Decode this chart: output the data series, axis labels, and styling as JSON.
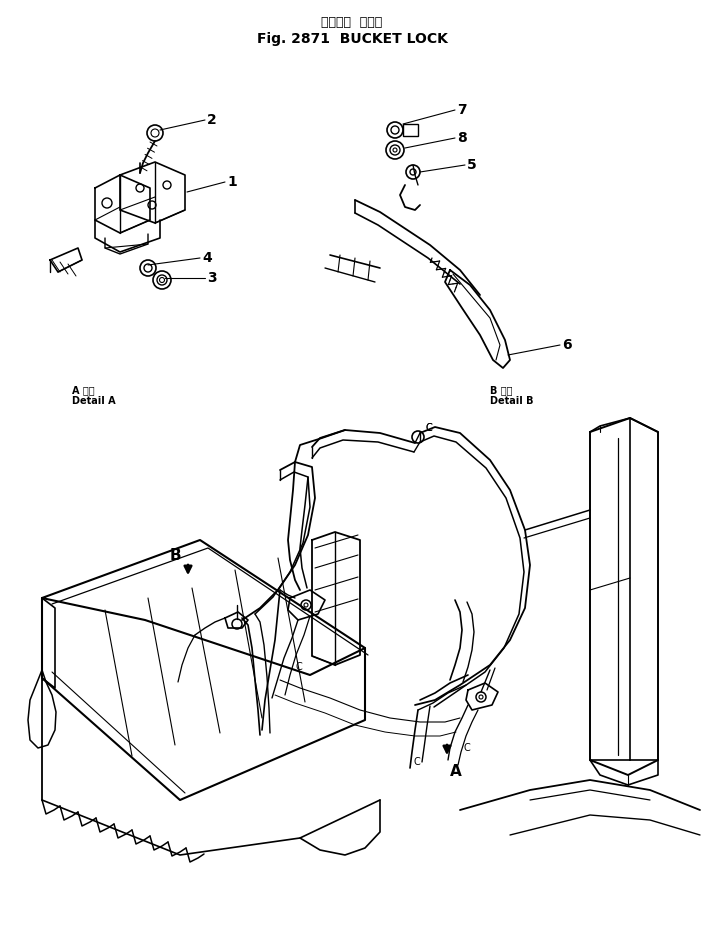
{
  "title_japanese": "バケット  ロック",
  "title_english": "Fig. 2871  BUCKET LOCK",
  "background_color": "#ffffff",
  "line_color": "#000000",
  "fig_width": 7.05,
  "fig_height": 9.26,
  "dpi": 100,
  "label_detailA_jp": "A 詳細",
  "label_detailA_en": "Detail A",
  "label_detailB_jp": "B 詳細",
  "label_detailB_en": "Detail B"
}
